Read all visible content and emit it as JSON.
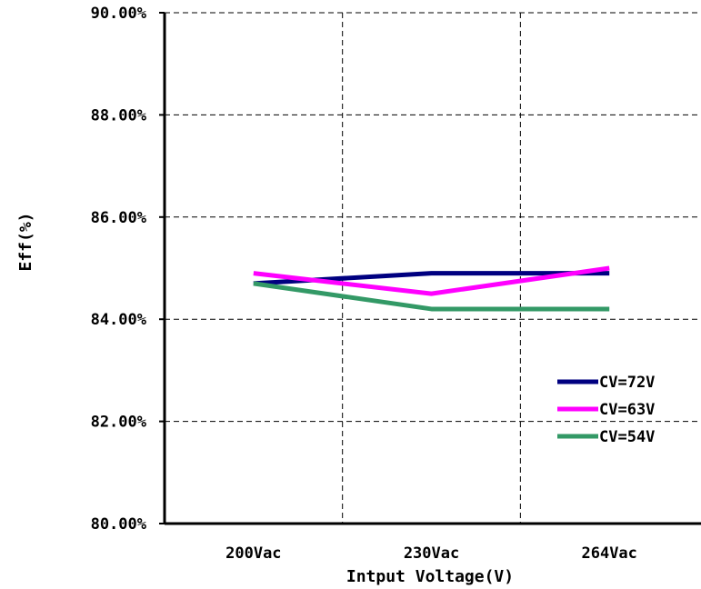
{
  "chart_data": {
    "type": "line",
    "categories": [
      "200Vac",
      "230Vac",
      "264Vac"
    ],
    "series": [
      {
        "name": "CV=72V",
        "color": "#000080",
        "values": [
          84.7,
          84.9,
          84.9
        ]
      },
      {
        "name": "CV=63V",
        "color": "#ff00ff",
        "values": [
          84.9,
          84.5,
          85.0
        ]
      },
      {
        "name": "CV=54V",
        "color": "#339966",
        "values": [
          84.7,
          84.2,
          84.2
        ]
      }
    ],
    "xlabel": "Intput Voltage(V)",
    "ylabel": "Eff(%)",
    "ylim": [
      80,
      90
    ],
    "y_ticks": [
      "80.00%",
      "82.00%",
      "84.00%",
      "86.00%",
      "88.00%",
      "90.00%"
    ],
    "y_tick_values": [
      80,
      82,
      84,
      86,
      88,
      90
    ],
    "grid": true,
    "legend_position": "right"
  }
}
